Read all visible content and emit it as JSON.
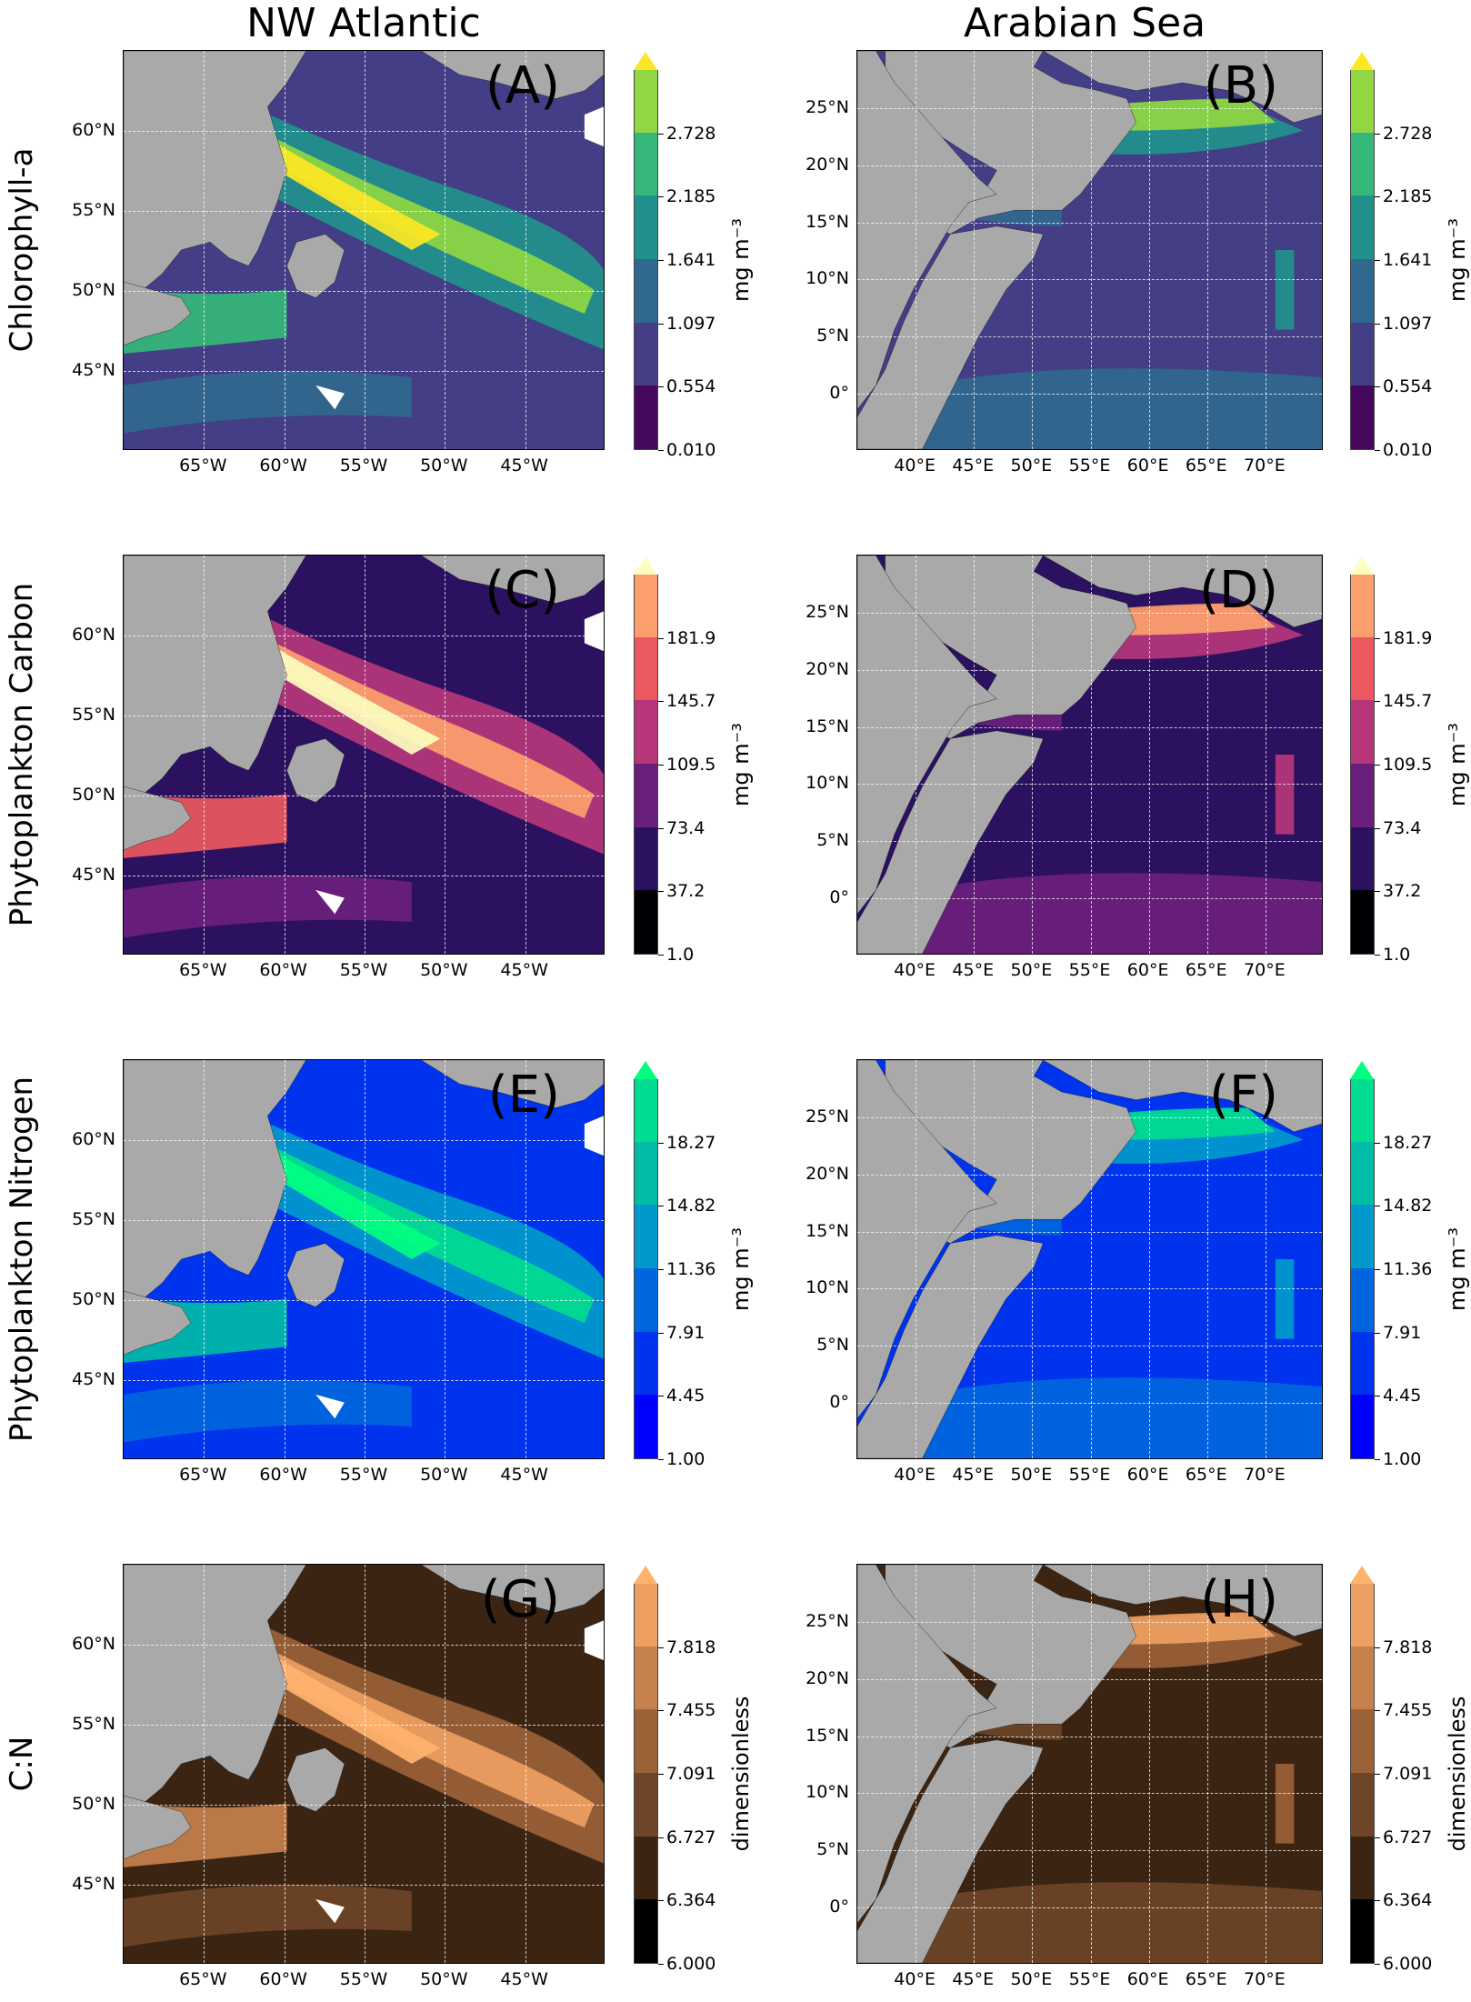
{
  "columns": [
    {
      "title": "NW Atlantic"
    },
    {
      "title": "Arabian Sea"
    }
  ],
  "rows": [
    {
      "title": "Chlorophyll-a",
      "unit": "mg m⁻³",
      "ticks": [
        "0.010",
        "0.554",
        "1.097",
        "1.641",
        "2.185",
        "2.728"
      ],
      "colors": [
        "#46085c",
        "#433e85",
        "#31688e",
        "#21918c",
        "#35b779",
        "#90d743",
        "#fde725"
      ],
      "arrow": "top"
    },
    {
      "title": "Phytoplankton Carbon",
      "unit": "mg m⁻³",
      "ticks": [
        "1.0",
        "37.2",
        "73.4",
        "109.5",
        "145.7",
        "181.9"
      ],
      "colors": [
        "#000004",
        "#2c1160",
        "#6b1f7d",
        "#b63679",
        "#ec5860",
        "#fd9f6c",
        "#fcfdbf"
      ],
      "arrow": "top"
    },
    {
      "title": "Phytoplankton Nitrogen",
      "unit": "mg m⁻³",
      "ticks": [
        "1.00",
        "4.45",
        "7.91",
        "11.36",
        "14.82",
        "18.27"
      ],
      "colors": [
        "#0000ff",
        "#0033ee",
        "#0066dd",
        "#0099cc",
        "#00bba6",
        "#00dd90",
        "#00ff80"
      ],
      "arrow": "top"
    },
    {
      "title": "C:N",
      "unit": "dimensionless",
      "ticks": [
        "6.000",
        "6.364",
        "6.727",
        "7.091",
        "7.455",
        "7.818"
      ],
      "colors": [
        "#000000",
        "#3c2413",
        "#6e4528",
        "#9b6238",
        "#c6814c",
        "#eea062",
        "#ffb36e"
      ],
      "arrow": "top"
    }
  ],
  "panels": [
    {
      "label": "(A)",
      "region": "NW Atlantic",
      "variable": "Chlorophyll-a"
    },
    {
      "label": "(B)",
      "region": "Arabian Sea",
      "variable": "Chlorophyll-a"
    },
    {
      "label": "(C)",
      "region": "NW Atlantic",
      "variable": "Phytoplankton Carbon"
    },
    {
      "label": "(D)",
      "region": "Arabian Sea",
      "variable": "Phytoplankton Carbon"
    },
    {
      "label": "(E)",
      "region": "NW Atlantic",
      "variable": "Phytoplankton Nitrogen"
    },
    {
      "label": "(F)",
      "region": "Arabian Sea",
      "variable": "Phytoplankton Nitrogen"
    },
    {
      "label": "(G)",
      "region": "NW Atlantic",
      "variable": "C:N"
    },
    {
      "label": "(H)",
      "region": "Arabian Sea",
      "variable": "C:N"
    }
  ],
  "nw_atlantic_axes": {
    "lat_labels": [
      "60°N",
      "55°N",
      "50°N",
      "45°N"
    ],
    "lat_values": [
      60,
      55,
      50,
      45
    ],
    "lat_range": [
      40,
      65
    ],
    "lon_labels": [
      "65°W",
      "60°W",
      "55°W",
      "50°W",
      "45°W"
    ],
    "lon_values": [
      -65,
      -60,
      -55,
      -50,
      -45
    ],
    "lon_range": [
      -70,
      -40
    ]
  },
  "arabian_sea_axes": {
    "lat_labels": [
      "25°N",
      "20°N",
      "15°N",
      "10°N",
      "5°N",
      "0°"
    ],
    "lat_values": [
      25,
      20,
      15,
      10,
      5,
      0
    ],
    "lat_range": [
      -5,
      30
    ],
    "lon_labels": [
      "40°E",
      "45°E",
      "50°E",
      "55°E",
      "60°E",
      "65°E",
      "70°E"
    ],
    "lon_values": [
      40,
      45,
      50,
      55,
      60,
      65,
      70
    ],
    "lon_range": [
      35,
      75
    ]
  },
  "land_color": "#a9a9a9",
  "no_data_color": "#ffffff"
}
